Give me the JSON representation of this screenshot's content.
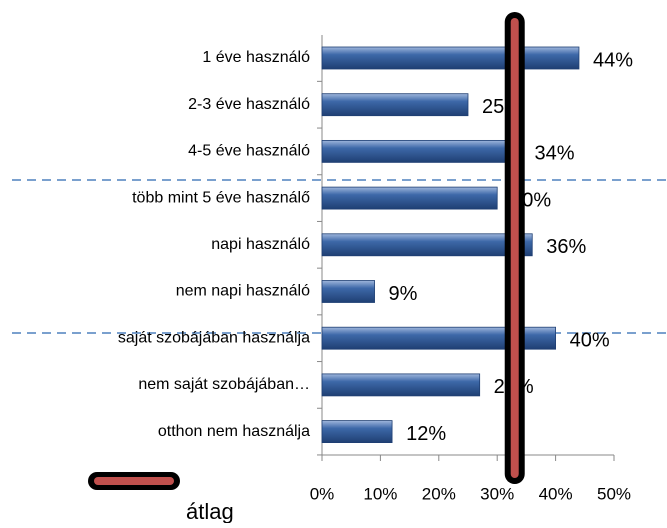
{
  "chart_data": {
    "type": "bar",
    "orientation": "horizontal",
    "categories": [
      "1 éve használó",
      "2-3 éve használó",
      "4-5 éve használó",
      "több mint 5 éve használő",
      "napi használó",
      "nem napi használó",
      "saját szobájában használja",
      "nem saját szobájában…",
      "otthon nem használja"
    ],
    "values": [
      44,
      25,
      34,
      30,
      36,
      9,
      40,
      27,
      12
    ],
    "value_labels": [
      "44%",
      "25%",
      "34%",
      "30%",
      "36%",
      "9%",
      "40%",
      "27%",
      "12%"
    ],
    "color": "#3d68a8",
    "xlim": [
      0,
      50
    ],
    "xticks": [
      {
        "value": 0,
        "label": "0%"
      },
      {
        "value": 10,
        "label": "10%"
      },
      {
        "value": 20,
        "label": "20%"
      },
      {
        "value": 30,
        "label": "30%"
      },
      {
        "value": 40,
        "label": "40%"
      },
      {
        "value": 50,
        "label": "50%"
      }
    ],
    "average": {
      "name": "átlag",
      "value": 33,
      "color": "#c0504d"
    }
  }
}
